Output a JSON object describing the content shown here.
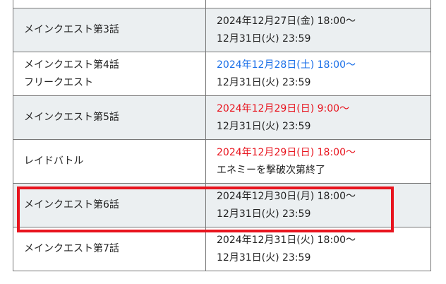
{
  "rows": [
    {
      "name": "",
      "line1": "",
      "line2": "",
      "shaded": false
    },
    {
      "name": "メインクエスト第3話",
      "line1": "2024年12月27日(金) 18:00～",
      "line2": "12月31日(火) 23:59",
      "shaded": true,
      "line1_color": "default"
    },
    {
      "name": "メインクエスト第4話",
      "name2": "フリークエスト",
      "line1": "2024年12月28日(土) 18:00～",
      "line2": "12月31日(火) 23:59",
      "shaded": false,
      "line1_color": "#1a6fe8"
    },
    {
      "name": "メインクエスト第5話",
      "line1": "2024年12月29日(日) 9:00～",
      "line2": "12月31日(火) 23:59",
      "shaded": true,
      "line1_color": "#e8141e"
    },
    {
      "name": "レイドバトル",
      "line1": "2024年12月29日(日) 18:00～",
      "line2": "エネミーを撃破次第終了",
      "shaded": false,
      "line1_color": "#e8141e"
    },
    {
      "name": "メインクエスト第6話",
      "line1": "2024年12月30日(月) 18:00～",
      "line2": "12月31日(火) 23:59",
      "shaded": true,
      "highlighted": true
    },
    {
      "name": "メインクエスト第7話",
      "line1": "2024年12月31日(火) 18:00～",
      "line2": "12月31日(火) 23:59",
      "shaded": false
    }
  ],
  "colors": {
    "highlight": "#e8141e",
    "blue": "#1a6fe8",
    "red": "#e8141e",
    "shade": "#ebeff1"
  }
}
